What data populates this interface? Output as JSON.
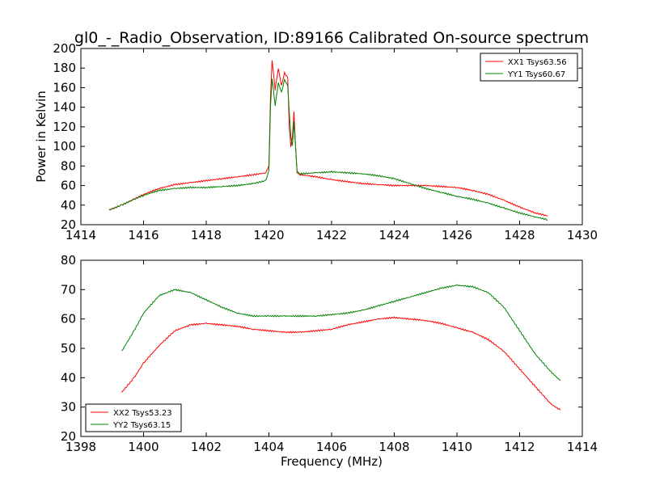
{
  "figure": {
    "title": "gl0_-_Radio_Observation, ID:89166 Calibrated On-source spectrum",
    "colors": {
      "background": "#ffffff",
      "axes": "#000000",
      "xx": "#ff0000",
      "yy": "#008000"
    }
  },
  "chart_data": [
    {
      "type": "line",
      "title": "gl0_-_Radio_Observation, ID:89166 Calibrated On-source spectrum",
      "xlabel": "",
      "ylabel": "Power in Kelvin",
      "xlim": [
        1414,
        1430
      ],
      "ylim": [
        20,
        200
      ],
      "xticks": [
        1414,
        1416,
        1418,
        1420,
        1422,
        1424,
        1426,
        1428,
        1430
      ],
      "yticks": [
        20,
        40,
        60,
        80,
        100,
        120,
        140,
        160,
        180,
        200
      ],
      "legend_position": "top-right",
      "series": [
        {
          "name": "XX1 Tsys63.56",
          "color": "#ff0000",
          "x": [
            1414.9,
            1415.3,
            1415.7,
            1416.0,
            1416.5,
            1417.0,
            1417.5,
            1418.0,
            1418.5,
            1419.0,
            1419.5,
            1419.9,
            1420.0,
            1420.05,
            1420.1,
            1420.2,
            1420.3,
            1420.4,
            1420.5,
            1420.6,
            1420.65,
            1420.7,
            1420.75,
            1420.8,
            1420.85,
            1420.9,
            1421.0,
            1421.5,
            1422.0,
            1422.5,
            1423.0,
            1423.5,
            1424.0,
            1424.5,
            1425.0,
            1425.5,
            1426.0,
            1426.5,
            1427.0,
            1427.5,
            1428.0,
            1428.5,
            1428.9
          ],
          "values": [
            35,
            40,
            46,
            51,
            57,
            61,
            63,
            65,
            67,
            69,
            71,
            73,
            80,
            150,
            188,
            158,
            180,
            162,
            175,
            170,
            120,
            100,
            110,
            135,
            100,
            73,
            71,
            69,
            66,
            64,
            62,
            61,
            60,
            60,
            60,
            59,
            58,
            55,
            51,
            45,
            38,
            32,
            29
          ]
        },
        {
          "name": "YY1 Tsys60.67",
          "color": "#008000",
          "x": [
            1414.9,
            1415.3,
            1415.7,
            1416.0,
            1416.5,
            1417.0,
            1417.5,
            1418.0,
            1418.5,
            1419.0,
            1419.5,
            1419.9,
            1420.0,
            1420.05,
            1420.1,
            1420.2,
            1420.3,
            1420.4,
            1420.5,
            1420.6,
            1420.65,
            1420.7,
            1420.75,
            1420.8,
            1420.85,
            1420.9,
            1421.0,
            1421.5,
            1422.0,
            1422.5,
            1423.0,
            1423.5,
            1424.0,
            1424.5,
            1425.0,
            1425.5,
            1426.0,
            1426.5,
            1427.0,
            1427.5,
            1428.0,
            1428.5,
            1428.9
          ],
          "values": [
            35,
            40,
            46,
            50,
            55,
            57,
            58,
            58,
            59,
            60,
            62,
            65,
            75,
            140,
            170,
            142,
            165,
            155,
            168,
            162,
            135,
            110,
            100,
            125,
            100,
            74,
            72,
            73,
            74,
            73,
            72,
            70,
            67,
            62,
            57,
            53,
            49,
            46,
            42,
            37,
            32,
            28,
            25
          ]
        }
      ]
    },
    {
      "type": "line",
      "title": "",
      "xlabel": "Frequency (MHz)",
      "ylabel": "",
      "xlim": [
        1398,
        1414
      ],
      "ylim": [
        20,
        80
      ],
      "xticks": [
        1398,
        1400,
        1402,
        1404,
        1406,
        1408,
        1410,
        1412,
        1414
      ],
      "yticks": [
        20,
        30,
        40,
        50,
        60,
        70,
        80
      ],
      "legend_position": "bottom-left",
      "series": [
        {
          "name": "XX2 Tsys53.23",
          "color": "#ff0000",
          "x": [
            1399.3,
            1399.7,
            1400.0,
            1400.5,
            1401.0,
            1401.5,
            1402.0,
            1402.5,
            1403.0,
            1403.5,
            1404.0,
            1404.5,
            1405.0,
            1405.5,
            1406.0,
            1406.5,
            1407.0,
            1407.5,
            1408.0,
            1408.5,
            1409.0,
            1409.5,
            1410.0,
            1410.5,
            1411.0,
            1411.5,
            1412.0,
            1412.5,
            1413.0,
            1413.3
          ],
          "values": [
            35,
            40,
            45,
            51,
            56,
            58,
            58.5,
            58,
            57.5,
            56.5,
            56,
            55.5,
            55.5,
            56,
            56.5,
            58,
            59,
            60,
            60.5,
            60,
            59.5,
            58.5,
            57,
            55.5,
            53,
            49,
            43,
            37,
            31,
            29
          ]
        },
        {
          "name": "YY2 Tsys63.15",
          "color": "#008000",
          "x": [
            1399.3,
            1399.7,
            1400.0,
            1400.5,
            1401.0,
            1401.5,
            1402.0,
            1402.5,
            1403.0,
            1403.5,
            1404.0,
            1404.5,
            1405.0,
            1405.5,
            1406.0,
            1406.5,
            1407.0,
            1407.5,
            1408.0,
            1408.5,
            1409.0,
            1409.5,
            1410.0,
            1410.5,
            1411.0,
            1411.5,
            1412.0,
            1412.5,
            1413.0,
            1413.3
          ],
          "values": [
            49,
            56,
            62,
            68,
            70,
            69,
            66.5,
            64,
            62,
            61,
            61,
            61,
            61,
            61,
            61.5,
            62,
            63,
            64.5,
            66,
            67.5,
            69,
            70.5,
            71.5,
            71,
            69,
            64,
            56,
            48,
            42,
            39
          ]
        }
      ]
    }
  ]
}
